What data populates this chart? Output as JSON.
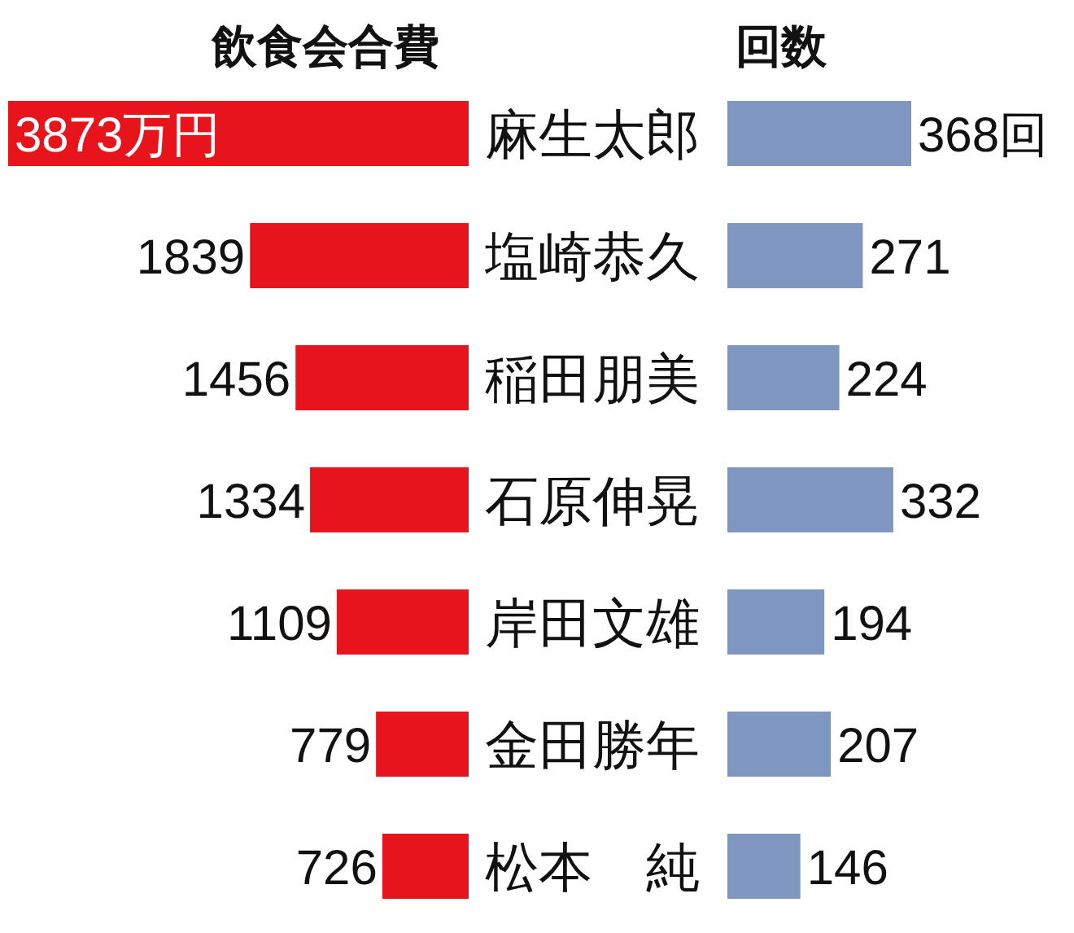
{
  "chart_data": [
    {
      "type": "bar",
      "title": "飲食会合費",
      "orientation": "horizontal",
      "categories": [
        "麻生太郎",
        "塩崎恭久",
        "稲田朋美",
        "石原伸晃",
        "岸田文雄",
        "金田勝年",
        "松本　純"
      ],
      "values": [
        3873,
        1839,
        1456,
        1334,
        1109,
        779,
        726
      ],
      "color": "#e8141c",
      "value_labels": [
        "3873万円",
        "1839",
        "1456",
        "1334",
        "1109",
        "779",
        "726"
      ]
    },
    {
      "type": "bar",
      "title": "回数",
      "orientation": "horizontal",
      "values": [
        368,
        271,
        224,
        332,
        194,
        207,
        146
      ],
      "color": "#7f96c0",
      "value_labels": [
        "368回",
        "271",
        "224",
        "332",
        "194",
        "207",
        "146"
      ]
    }
  ]
}
